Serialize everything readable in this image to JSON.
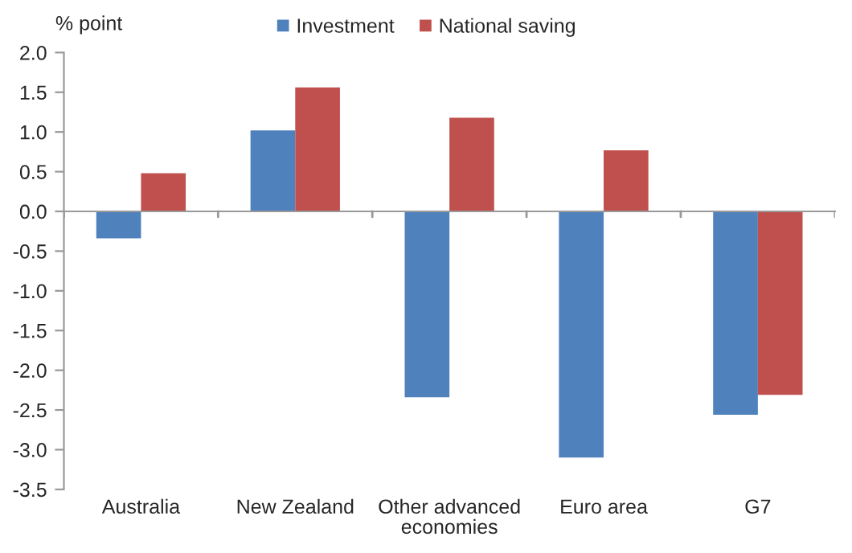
{
  "chart_data": {
    "type": "bar",
    "ylabel": "% point",
    "categories": [
      "Australia",
      "New Zealand",
      "Other advanced\neconomies",
      "Euro area",
      "G7"
    ],
    "series": [
      {
        "name": "Investment",
        "color": "#4f81bd",
        "values": [
          -0.34,
          1.02,
          -2.34,
          -3.1,
          -2.56
        ]
      },
      {
        "name": "National saving",
        "color": "#c0504d",
        "values": [
          0.48,
          1.56,
          1.18,
          0.77,
          -2.31
        ]
      }
    ],
    "ylim": [
      -3.5,
      2.0
    ],
    "yticks": [
      {
        "value": 2.0,
        "label": "2.0"
      },
      {
        "value": 1.5,
        "label": "1.5"
      },
      {
        "value": 1.0,
        "label": "1.0"
      },
      {
        "value": 0.5,
        "label": "0.5"
      },
      {
        "value": 0.0,
        "label": "0.0"
      },
      {
        "value": -0.5,
        "label": "-0.5"
      },
      {
        "value": -1.0,
        "label": "-1.0"
      },
      {
        "value": -1.5,
        "label": "-1.5"
      },
      {
        "value": -2.0,
        "label": "-2.0"
      },
      {
        "value": -2.5,
        "label": "-2.5"
      },
      {
        "value": -3.0,
        "label": "-3.0"
      },
      {
        "value": -3.5,
        "label": "-3.5"
      }
    ],
    "legend": "top"
  }
}
